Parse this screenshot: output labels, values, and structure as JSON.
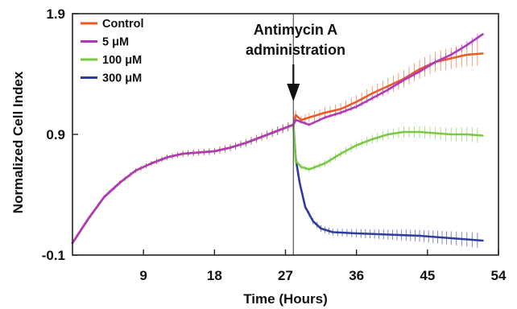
{
  "chart_data": {
    "type": "line",
    "title": "",
    "xlabel": "Time (Hours)",
    "ylabel": "Normalized Cell Index",
    "xlim": [
      0,
      54
    ],
    "ylim": [
      -0.1,
      1.9
    ],
    "x_ticks": [
      9,
      18,
      27,
      36,
      45,
      54
    ],
    "y_ticks": [
      -0.1,
      0.9,
      1.9
    ],
    "y_tick_labels": [
      "-0.1",
      "0.9",
      "1.9"
    ],
    "grid": false,
    "legend_position": "top-left",
    "annotation": {
      "lines": [
        "Antimycin A",
        "administration"
      ],
      "x": 28,
      "arrow_to_y": 1.05,
      "vertical_line_x": 28
    },
    "series": [
      {
        "name": "Control",
        "color": "#ee5a24",
        "points": [
          [
            0,
            0
          ],
          [
            2,
            0.2
          ],
          [
            4,
            0.38
          ],
          [
            6,
            0.5
          ],
          [
            8,
            0.6
          ],
          [
            10,
            0.66
          ],
          [
            12,
            0.71
          ],
          [
            14,
            0.74
          ],
          [
            16,
            0.75
          ],
          [
            18,
            0.76
          ],
          [
            20,
            0.79
          ],
          [
            22,
            0.83
          ],
          [
            24,
            0.88
          ],
          [
            26,
            0.93
          ],
          [
            28,
            0.98
          ],
          [
            28.3,
            1.06
          ],
          [
            29,
            1.02
          ],
          [
            30,
            1.04
          ],
          [
            32,
            1.08
          ],
          [
            34,
            1.11
          ],
          [
            36,
            1.17
          ],
          [
            38,
            1.24
          ],
          [
            40,
            1.3
          ],
          [
            42,
            1.36
          ],
          [
            44,
            1.44
          ],
          [
            46,
            1.5
          ],
          [
            48,
            1.53
          ],
          [
            50,
            1.56
          ],
          [
            52,
            1.57
          ]
        ]
      },
      {
        "name": "5 μM",
        "color": "#b03ab8",
        "points": [
          [
            0,
            0
          ],
          [
            2,
            0.2
          ],
          [
            4,
            0.38
          ],
          [
            6,
            0.5
          ],
          [
            8,
            0.6
          ],
          [
            10,
            0.66
          ],
          [
            12,
            0.71
          ],
          [
            14,
            0.74
          ],
          [
            16,
            0.75
          ],
          [
            18,
            0.76
          ],
          [
            20,
            0.79
          ],
          [
            22,
            0.83
          ],
          [
            24,
            0.88
          ],
          [
            26,
            0.93
          ],
          [
            28,
            0.98
          ],
          [
            28.3,
            1.02
          ],
          [
            30,
            0.98
          ],
          [
            32,
            1.04
          ],
          [
            34,
            1.08
          ],
          [
            36,
            1.13
          ],
          [
            38,
            1.2
          ],
          [
            40,
            1.27
          ],
          [
            42,
            1.35
          ],
          [
            44,
            1.42
          ],
          [
            46,
            1.5
          ],
          [
            48,
            1.56
          ],
          [
            50,
            1.64
          ],
          [
            52,
            1.73
          ]
        ]
      },
      {
        "name": "100 μM",
        "color": "#7ac943",
        "points": [
          [
            0,
            0
          ],
          [
            2,
            0.2
          ],
          [
            4,
            0.38
          ],
          [
            6,
            0.5
          ],
          [
            8,
            0.6
          ],
          [
            10,
            0.66
          ],
          [
            12,
            0.71
          ],
          [
            14,
            0.74
          ],
          [
            16,
            0.75
          ],
          [
            18,
            0.76
          ],
          [
            20,
            0.79
          ],
          [
            22,
            0.83
          ],
          [
            24,
            0.88
          ],
          [
            26,
            0.93
          ],
          [
            28,
            0.98
          ],
          [
            28.3,
            0.68
          ],
          [
            29,
            0.63
          ],
          [
            30,
            0.61
          ],
          [
            32,
            0.66
          ],
          [
            34,
            0.74
          ],
          [
            36,
            0.81
          ],
          [
            38,
            0.86
          ],
          [
            40,
            0.9
          ],
          [
            42,
            0.92
          ],
          [
            44,
            0.92
          ],
          [
            46,
            0.91
          ],
          [
            48,
            0.9
          ],
          [
            50,
            0.9
          ],
          [
            52,
            0.89
          ]
        ]
      },
      {
        "name": "300 μM",
        "color": "#2d3d99",
        "points": [
          [
            0,
            0
          ],
          [
            2,
            0.2
          ],
          [
            4,
            0.38
          ],
          [
            6,
            0.5
          ],
          [
            8,
            0.6
          ],
          [
            10,
            0.66
          ],
          [
            12,
            0.71
          ],
          [
            14,
            0.74
          ],
          [
            16,
            0.75
          ],
          [
            18,
            0.76
          ],
          [
            20,
            0.79
          ],
          [
            22,
            0.83
          ],
          [
            24,
            0.88
          ],
          [
            26,
            0.93
          ],
          [
            28,
            0.98
          ],
          [
            28.3,
            0.7
          ],
          [
            28.8,
            0.5
          ],
          [
            29.5,
            0.3
          ],
          [
            30.5,
            0.18
          ],
          [
            31.5,
            0.12
          ],
          [
            33,
            0.09
          ],
          [
            36,
            0.08
          ],
          [
            40,
            0.07
          ],
          [
            44,
            0.06
          ],
          [
            48,
            0.04
          ],
          [
            50,
            0.03
          ],
          [
            52,
            0.02
          ]
        ]
      }
    ]
  }
}
